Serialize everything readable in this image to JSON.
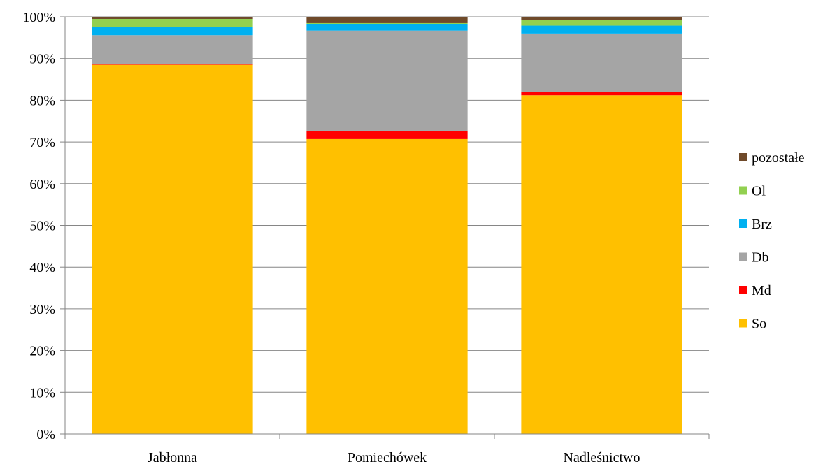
{
  "chart_data": {
    "type": "bar",
    "stacked": true,
    "percent": true,
    "categories": [
      "Jabłonna",
      "Pomiechówek",
      "Nadleśnictwo"
    ],
    "series": [
      {
        "name": "So",
        "color": "#ffc000",
        "values": [
          88.5,
          70.7,
          81.2
        ]
      },
      {
        "name": "Md",
        "color": "#ff0000",
        "values": [
          0.1,
          2.0,
          0.8
        ]
      },
      {
        "name": "Db",
        "color": "#a5a5a5",
        "values": [
          7.0,
          24.0,
          14.0
        ]
      },
      {
        "name": "Brz",
        "color": "#00b0f0",
        "values": [
          2.0,
          1.6,
          1.9
        ]
      },
      {
        "name": "Ol",
        "color": "#92d050",
        "values": [
          1.9,
          0.2,
          1.4
        ]
      },
      {
        "name": "pozostałe",
        "color": "#6f4a2a",
        "values": [
          0.5,
          1.5,
          0.7
        ]
      }
    ],
    "ylim": [
      0,
      100
    ],
    "yticks": [
      "0%",
      "10%",
      "20%",
      "30%",
      "40%",
      "50%",
      "60%",
      "70%",
      "80%",
      "90%",
      "100%"
    ],
    "grid": true,
    "legend_position": "right"
  }
}
